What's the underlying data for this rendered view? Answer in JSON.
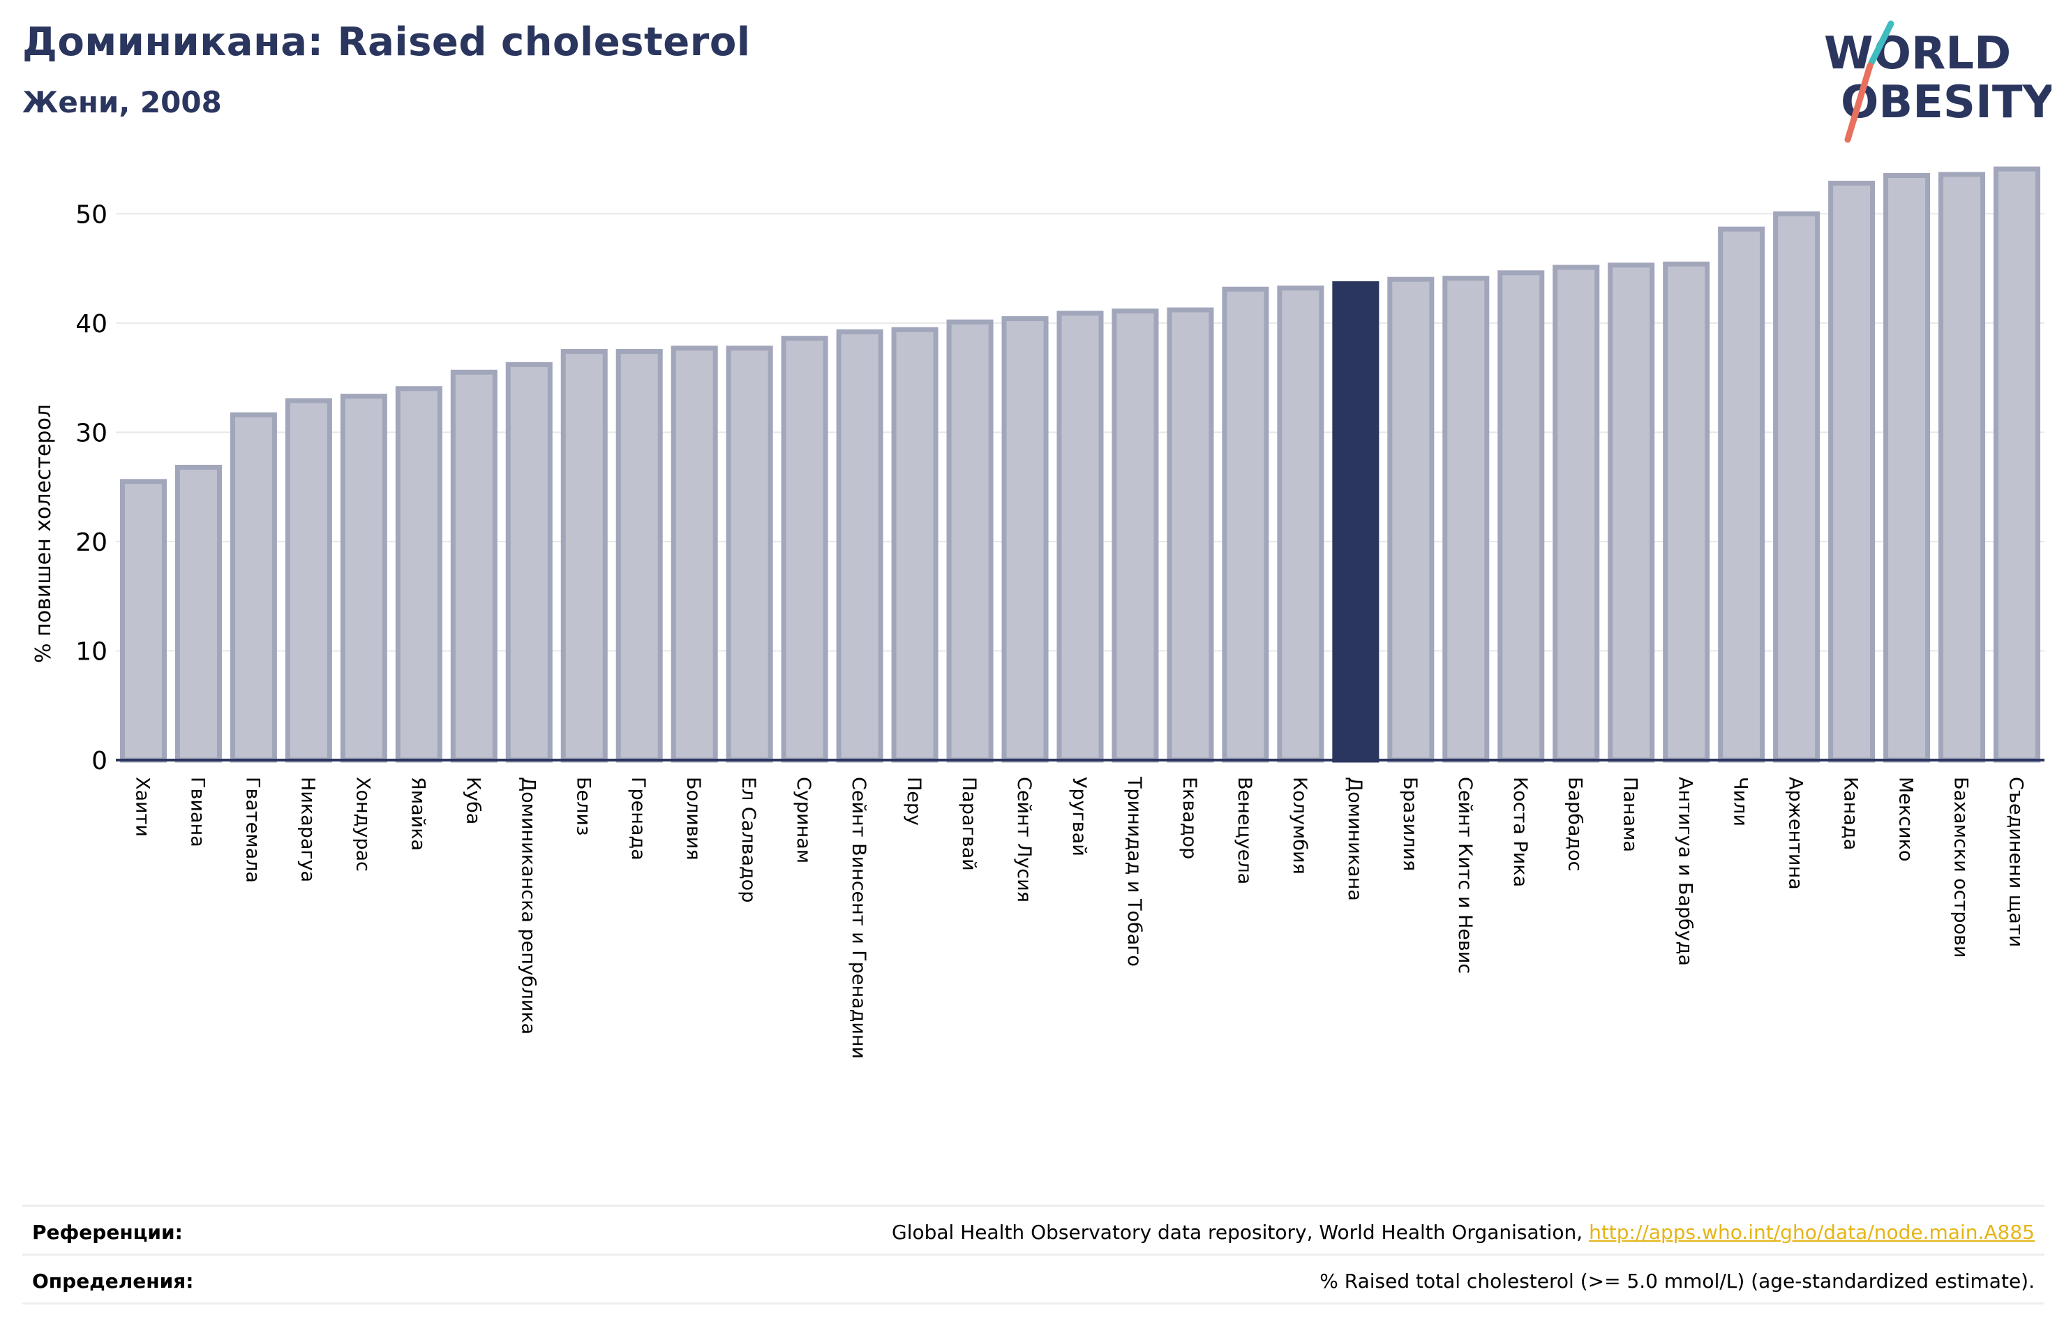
{
  "header": {
    "title": "Доминикана: Raised cholesterol",
    "subtitle": "Жени, 2008"
  },
  "logo": {
    "line1": "WORLD",
    "line2": "OBESITY",
    "colors": {
      "text": "#2b365f",
      "slash_top": "#3fbcbf",
      "slash_bottom": "#e8705e"
    }
  },
  "colors": {
    "bar_fill": "#c0c2cf",
    "bar_stroke": "#a2a6bb",
    "highlight": "#2b365f",
    "grid": "#e8e8e8",
    "axis": "#2b365f"
  },
  "chart_data": {
    "type": "bar",
    "title": "",
    "xlabel": "",
    "ylabel": "% повишен холестерол",
    "ylim": [
      0,
      55
    ],
    "yticks": [
      0,
      10,
      20,
      30,
      40,
      50
    ],
    "grid": true,
    "highlight": "Доминикана",
    "categories": [
      "Хаити",
      "Гвиана",
      "Гватемала",
      "Никарагуа",
      "Хондурас",
      "Ямайка",
      "Куба",
      "Доминиканска република",
      "Белиз",
      "Гренада",
      "Боливия",
      "Ел Салвадор",
      "Суринам",
      "Сейнт Винсент и Гренадини",
      "Перу",
      "Парагвай",
      "Сейнт Лусия",
      "Уругвай",
      "Тринидад и Тобаго",
      "Еквадор",
      "Венецуела",
      "Колумбия",
      "Доминикана",
      "Бразилия",
      "Сейнт Китс и Невис",
      "Коста Рика",
      "Барбадос",
      "Панама",
      "Антигуа и Барбуда",
      "Чили",
      "Аржентина",
      "Канада",
      "Мексико",
      "Бахамски острови",
      "Съединени щати"
    ],
    "values": [
      25.5,
      26.8,
      31.6,
      32.9,
      33.3,
      34.0,
      35.5,
      36.2,
      37.4,
      37.4,
      37.7,
      37.7,
      38.6,
      39.2,
      39.4,
      40.1,
      40.4,
      40.9,
      41.1,
      41.2,
      43.1,
      43.2,
      43.6,
      44.0,
      44.1,
      44.6,
      45.1,
      45.3,
      45.4,
      48.6,
      50.0,
      52.8,
      53.5,
      53.6,
      54.1
    ]
  },
  "footer": {
    "references_label": "Референции:",
    "references_text": "Global Health Observatory data repository, World Health Organisation, ",
    "references_link": "http://apps.who.int/gho/data/node.main.A885",
    "definitions_label": "Определения:",
    "definitions_text": "% Raised total cholesterol (>= 5.0 mmol/L) (age-standardized estimate)."
  }
}
